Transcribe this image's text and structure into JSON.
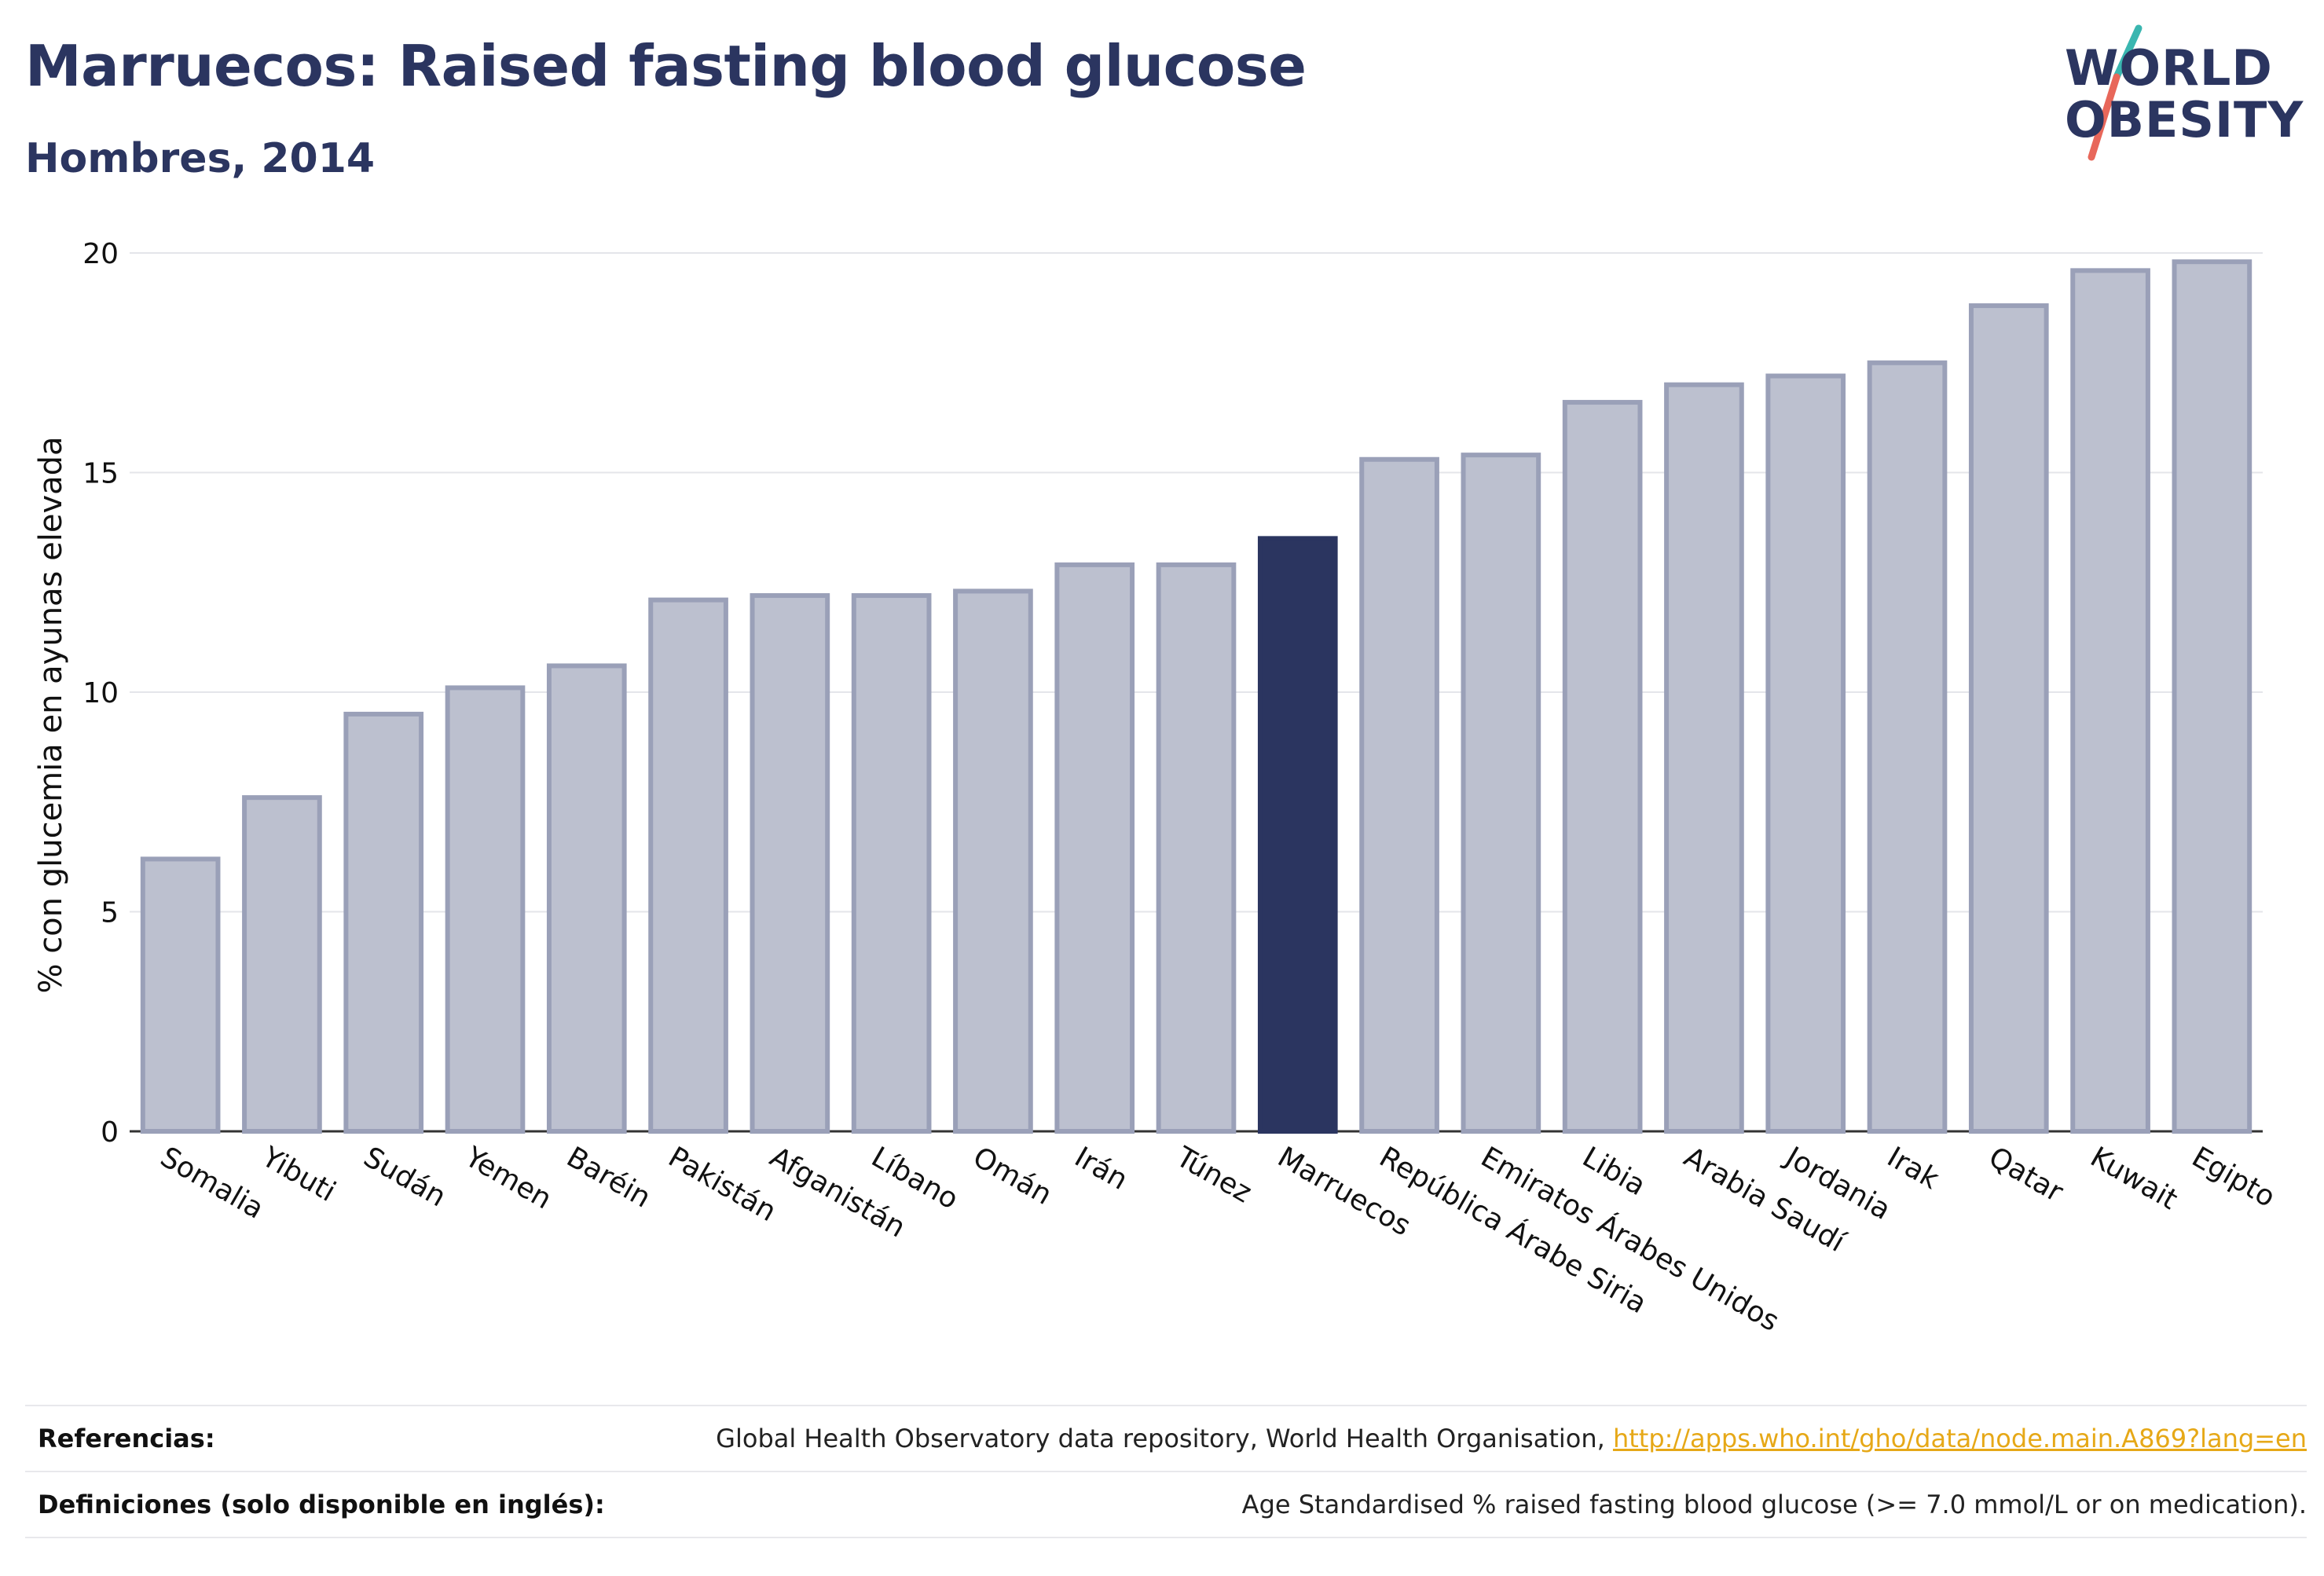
{
  "header": {
    "title": "Marruecos: Raised fasting blood glucose",
    "subtitle": "Hombres, 2014"
  },
  "logo": {
    "line1": "WORLD",
    "line2": "OBESITY",
    "colors": {
      "text": "#2b3560",
      "slash_top": "#3ab6b0",
      "slash_bottom": "#e8675a"
    }
  },
  "colors": {
    "bar": "#bcc0cf",
    "bar_border": "#9aa0b8",
    "highlight": "#2b3560",
    "grid": "#e4e5ea",
    "axis_text": "#111111"
  },
  "chart_data": {
    "type": "bar",
    "ylabel": "% con glucemia en ayunas elevada",
    "xlabel": "",
    "ylim": [
      0,
      20
    ],
    "yticks": [
      0,
      5,
      10,
      15,
      20
    ],
    "grid": true,
    "highlight": "Marruecos",
    "categories": [
      "Somalia",
      "Yibuti",
      "Sudán",
      "Yemen",
      "Baréin",
      "Pakistán",
      "Afganistán",
      "Líbano",
      "Omán",
      "Irán",
      "Túnez",
      "Marruecos",
      "República Árabe Siria",
      "Emiratos Árabes Unidos",
      "Libia",
      "Arabia Saudí",
      "Jordania",
      "Irak",
      "Qatar",
      "Kuwait",
      "Egipto"
    ],
    "values": [
      6.2,
      7.6,
      9.5,
      10.1,
      10.6,
      12.1,
      12.2,
      12.2,
      12.3,
      12.9,
      12.9,
      13.5,
      15.3,
      15.4,
      16.6,
      17.0,
      17.2,
      17.5,
      18.8,
      19.6,
      19.8
    ]
  },
  "footer": {
    "references_label": "Referencias:",
    "references_text": "Global Health Observatory data repository, World Health Organisation,",
    "references_link": "http://apps.who.int/gho/data/node.main.A869?lang=en",
    "definitions_label": "Definiciones (solo disponible en inglés):",
    "definitions_text": "Age Standardised % raised fasting blood glucose (>= 7.0 mmol/L or on medication)."
  }
}
